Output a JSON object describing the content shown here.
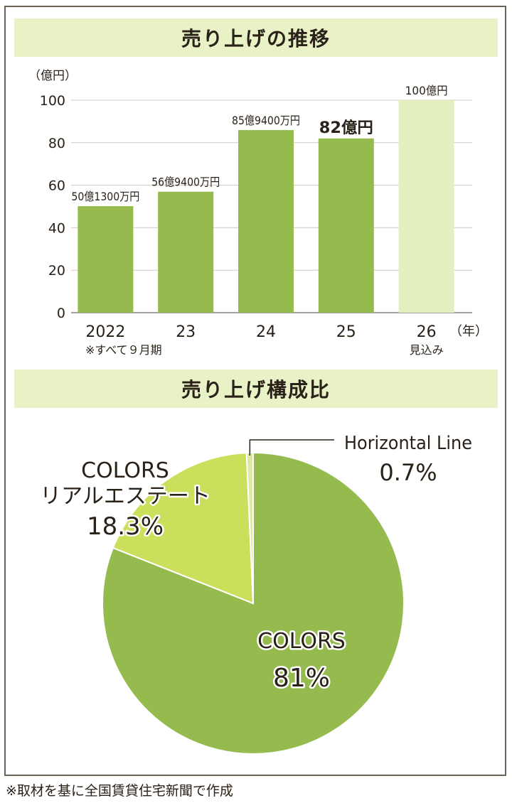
{
  "bar_title": "売り上げの推移",
  "pie_title": "売り上げ構成比",
  "footer": "※取材を基に全国賃貸住宅新聞で作成",
  "colors": {
    "bar": "#95bb4f",
    "bar_forecast": "#e4efbf",
    "pie_main": "#95bb4f",
    "pie_second": "#cbdf5c",
    "pie_third": "#dce9a6",
    "title_bg": "#e9f2c6"
  },
  "chart_data": [
    {
      "type": "bar",
      "title": "売り上げの推移",
      "y_unit_label": "（億円）",
      "x_unit_label": "（年）",
      "categories": [
        "2022",
        "23",
        "24",
        "25",
        "26"
      ],
      "category_sublabels": [
        "",
        "",
        "",
        "",
        "見込み"
      ],
      "values": [
        50.13,
        56.94,
        85.94,
        82,
        100
      ],
      "data_labels": [
        "50億1300万円",
        "56億9400万円",
        "85億9400万円",
        "82億円",
        "100億円"
      ],
      "highlight_index": 3,
      "forecast_index": 4,
      "ylim": [
        0,
        100
      ],
      "yticks": [
        0,
        20,
        40,
        60,
        80,
        100
      ],
      "grid": true,
      "note": "※すべて９月期"
    },
    {
      "type": "pie",
      "title": "売り上げ構成比",
      "slices": [
        {
          "label": "COLORS",
          "value": 81,
          "value_label": "81%"
        },
        {
          "label": "COLORS\nリアルエステート",
          "value": 18.3,
          "value_label": "18.3%"
        },
        {
          "label": "Horizontal Line",
          "value": 0.7,
          "value_label": "0.7%"
        }
      ]
    }
  ]
}
